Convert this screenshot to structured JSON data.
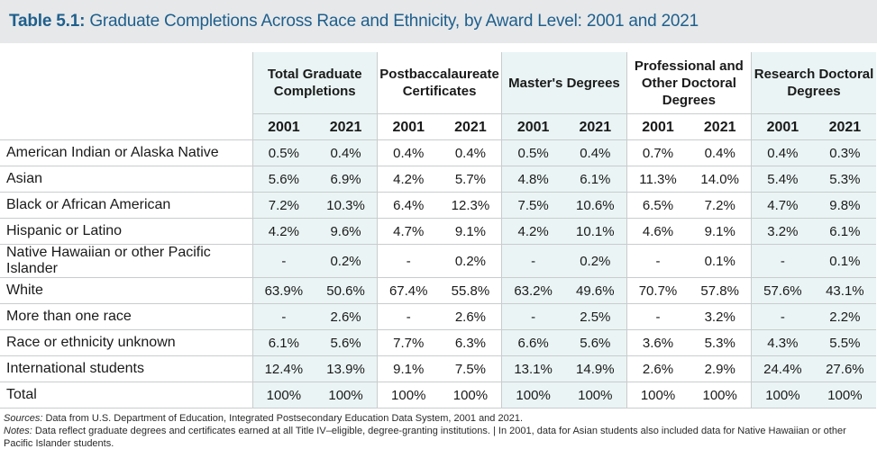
{
  "title": {
    "prefix": "Table 5.1:",
    "text": "Graduate Completions Across Race and Ethnicity, by Award Level: 2001 and 2021"
  },
  "column_groups": [
    "Total Graduate Completions",
    "Postbaccalaureate Certificates",
    "Master's Degrees",
    "Professional and Other Doctoral Degrees",
    "Research Doctoral Degrees"
  ],
  "years": [
    "2001",
    "2021"
  ],
  "rows": [
    {
      "label": "American Indian or Alaska Native",
      "values": [
        "0.5%",
        "0.4%",
        "0.4%",
        "0.4%",
        "0.5%",
        "0.4%",
        "0.7%",
        "0.4%",
        "0.4%",
        "0.3%"
      ]
    },
    {
      "label": "Asian",
      "values": [
        "5.6%",
        "6.9%",
        "4.2%",
        "5.7%",
        "4.8%",
        "6.1%",
        "11.3%",
        "14.0%",
        "5.4%",
        "5.3%"
      ]
    },
    {
      "label": "Black or African American",
      "values": [
        "7.2%",
        "10.3%",
        "6.4%",
        "12.3%",
        "7.5%",
        "10.6%",
        "6.5%",
        "7.2%",
        "4.7%",
        "9.8%"
      ]
    },
    {
      "label": "Hispanic or Latino",
      "values": [
        "4.2%",
        "9.6%",
        "4.7%",
        "9.1%",
        "4.2%",
        "10.1%",
        "4.6%",
        "9.1%",
        "3.2%",
        "6.1%"
      ]
    },
    {
      "label": "Native Hawaiian or other Pacific Islander",
      "values": [
        "-",
        "0.2%",
        "-",
        "0.2%",
        "-",
        "0.2%",
        "-",
        "0.1%",
        "-",
        "0.1%"
      ]
    },
    {
      "label": "White",
      "values": [
        "63.9%",
        "50.6%",
        "67.4%",
        "55.8%",
        "63.2%",
        "49.6%",
        "70.7%",
        "57.8%",
        "57.6%",
        "43.1%"
      ]
    },
    {
      "label": "More than one race",
      "values": [
        "-",
        "2.6%",
        "-",
        "2.6%",
        "-",
        "2.5%",
        "-",
        "3.2%",
        "-",
        "2.2%"
      ]
    },
    {
      "label": "Race or ethnicity unknown",
      "values": [
        "6.1%",
        "5.6%",
        "7.7%",
        "6.3%",
        "6.6%",
        "5.6%",
        "3.6%",
        "5.3%",
        "4.3%",
        "5.5%"
      ]
    },
    {
      "label": "International students",
      "values": [
        "12.4%",
        "13.9%",
        "9.1%",
        "7.5%",
        "13.1%",
        "14.9%",
        "2.6%",
        "2.9%",
        "24.4%",
        "27.6%"
      ]
    },
    {
      "label": "Total",
      "values": [
        "100%",
        "100%",
        "100%",
        "100%",
        "100%",
        "100%",
        "100%",
        "100%",
        "100%",
        "100%"
      ]
    }
  ],
  "footnotes": {
    "sources_label": "Sources:",
    "sources_text": " Data from U.S. Department of Education, Integrated Postsecondary Education Data System, 2001 and 2021.",
    "notes_label": "Notes:",
    "notes_text": " Data reflect graduate degrees and certificates earned at all Title IV–eligible, degree-granting institutions.  |  In 2001, data for Asian students also included data for Native Hawaiian or other Pacific Islander students."
  }
}
